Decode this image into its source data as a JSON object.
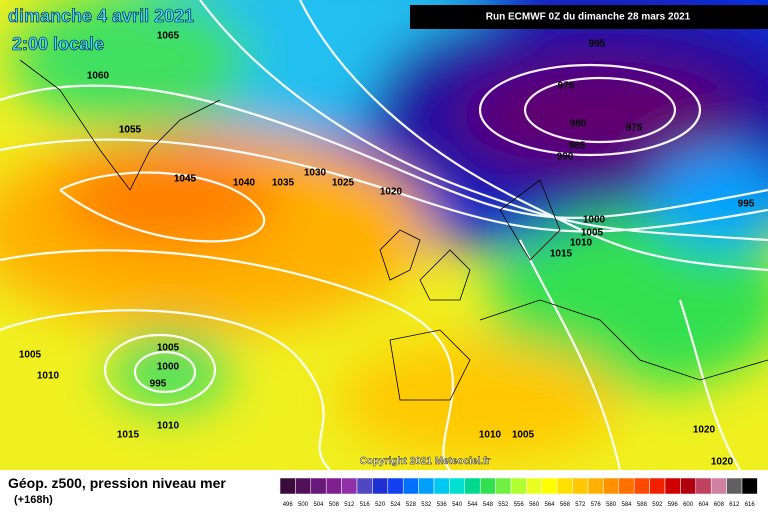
{
  "header": {
    "date": "dimanche 4 avril 2021",
    "time": "2:00 locale",
    "run": "Run ECMWF 0Z du dimanche 28 mars 2021"
  },
  "isobars": [
    "1065",
    "1060",
    "1055",
    "1045",
    "1055",
    "1045",
    "1040",
    "1035",
    "1030",
    "1025",
    "1020",
    "995",
    "975",
    "980",
    "975",
    "985",
    "990",
    "995",
    "1000",
    "1005",
    "1010",
    "1015",
    "1005",
    "1000",
    "995",
    "1005",
    "1010",
    "1015",
    "1010",
    "1010",
    "1005",
    "1020",
    "1020"
  ],
  "copyright": "Copyright 2021 Meteociel.fr",
  "footer": {
    "title": "Géop. z500, pression niveau mer",
    "lead": "(+168h)"
  },
  "scale": {
    "values": [
      496,
      500,
      504,
      508,
      512,
      516,
      520,
      524,
      528,
      532,
      536,
      540,
      544,
      548,
      552,
      556,
      560,
      564,
      568,
      572,
      576,
      580,
      584,
      588,
      592,
      596,
      600,
      604,
      608,
      612,
      616
    ],
    "colors": [
      "#3a0a3a",
      "#50105a",
      "#681878",
      "#802090",
      "#9030a8",
      "#5048c0",
      "#2030d0",
      "#1040f0",
      "#0070ff",
      "#00a0ff",
      "#00c8f0",
      "#00e0d0",
      "#00d890",
      "#30e050",
      "#70f040",
      "#b0ff30",
      "#e8ff20",
      "#ffff00",
      "#ffe000",
      "#ffc800",
      "#ffb000",
      "#ff9000",
      "#ff7000",
      "#ff4800",
      "#f02000",
      "#d00000",
      "#b00010",
      "#c04060",
      "#d080a0",
      "#606060",
      "#000000"
    ]
  }
}
